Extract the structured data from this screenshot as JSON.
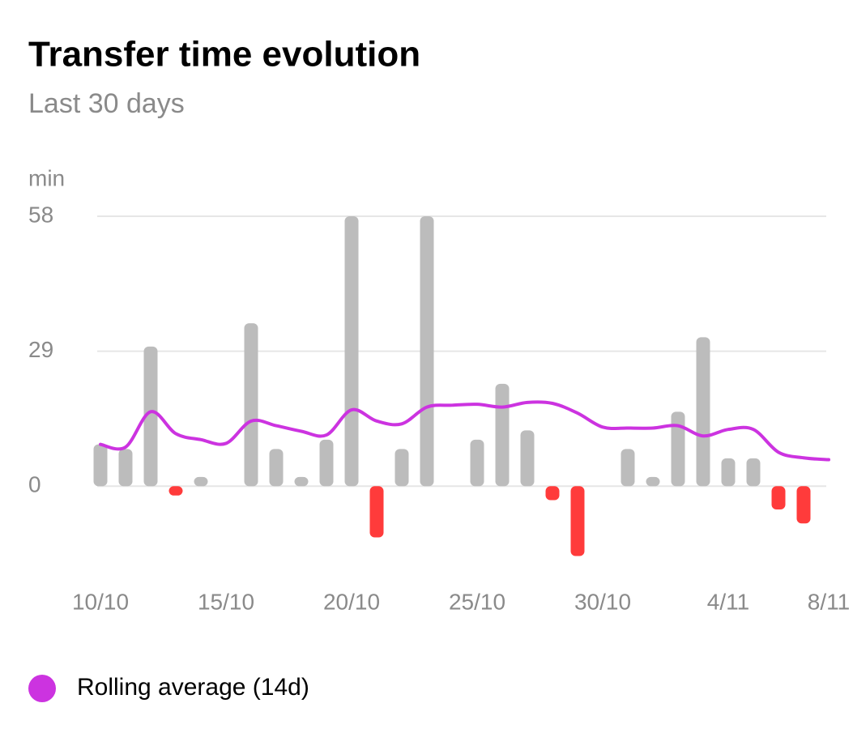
{
  "chart_data": {
    "type": "bar",
    "title": "Transfer time evolution",
    "subtitle": "Last 30 days",
    "y_unit": "min",
    "categories": [
      "10/10",
      null,
      null,
      null,
      null,
      "15/10",
      null,
      null,
      null,
      null,
      "20/10",
      null,
      null,
      null,
      null,
      "25/10",
      null,
      null,
      null,
      null,
      "30/10",
      null,
      null,
      null,
      null,
      "4/11",
      null,
      null,
      null,
      "8/11"
    ],
    "series": [
      {
        "type": "bar",
        "color": "#bcbcbc",
        "negative_color": "#ff3b3b",
        "values": [
          9,
          8,
          30,
          -2,
          2,
          null,
          35,
          8,
          2,
          10,
          58,
          -11,
          8,
          58,
          null,
          10,
          22,
          12,
          -3,
          -15,
          null,
          8,
          2,
          16,
          32,
          6,
          6,
          -5,
          -8,
          null
        ]
      },
      {
        "type": "line",
        "name": "Rolling average (14d)",
        "color": "#cc33e0",
        "values": [
          9,
          8.4,
          16,
          11.3,
          10,
          9.2,
          14,
          13,
          11.8,
          11,
          16.4,
          14,
          13.4,
          17,
          17.4,
          17.6,
          17,
          18,
          17.8,
          15.7,
          12.7,
          12.5,
          12.5,
          13,
          10.8,
          12.2,
          12.2,
          7.3,
          6.1,
          5.7
        ]
      }
    ],
    "ylim": [
      -17,
      58
    ],
    "yticks": [
      0,
      29,
      58
    ],
    "grid": true
  }
}
